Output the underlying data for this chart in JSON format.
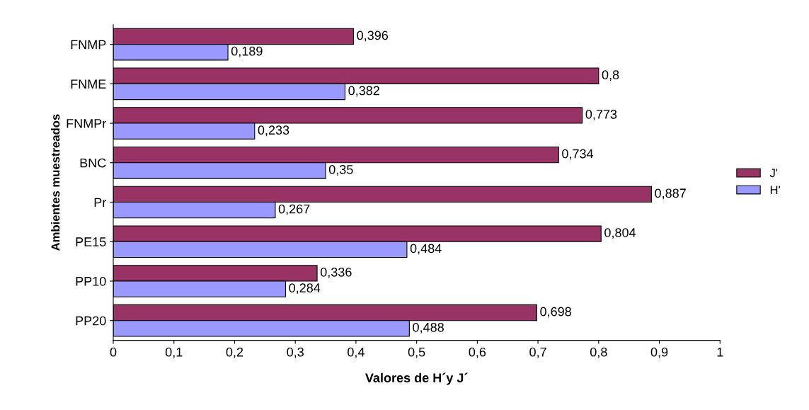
{
  "chart_data": {
    "type": "bar",
    "orientation": "horizontal",
    "xlabel": "Valores de H´y J´",
    "ylabel": "Ambientes muestreados",
    "categories": [
      "FNMP",
      "FNME",
      "FNMPr",
      "BNC",
      "Pr",
      "PE15",
      "PP10",
      "PP20"
    ],
    "series": [
      {
        "name": "J'",
        "color": "#993366",
        "values": [
          0.396,
          0.8,
          0.773,
          0.734,
          0.887,
          0.804,
          0.336,
          0.698
        ],
        "value_labels": [
          "0,396",
          "0,8",
          "0,773",
          "0,734",
          "0,887",
          "0,804",
          "0,336",
          "0,698"
        ]
      },
      {
        "name": "H'",
        "color": "#9999ff",
        "values": [
          0.189,
          0.382,
          0.233,
          0.35,
          0.267,
          0.484,
          0.284,
          0.488
        ],
        "value_labels": [
          "0,189",
          "0,382",
          "0,233",
          "0,35",
          "0,267",
          "0,484",
          "0,284",
          "0,488"
        ]
      }
    ],
    "xlim": [
      0,
      1
    ],
    "xticks": [
      0,
      {
        "value": 0.1,
        "label": "0,1"
      },
      {
        "value": 0.2,
        "label": "0,2"
      },
      {
        "value": 0.3,
        "label": "0,3"
      },
      {
        "value": 0.4,
        "label": "0,4"
      },
      {
        "value": 0.5,
        "label": "0,5"
      },
      {
        "value": 0.6,
        "label": "0,6"
      },
      {
        "value": 0.7,
        "label": "0,7"
      },
      {
        "value": 0.8,
        "label": "0,8"
      },
      {
        "value": 0.9,
        "label": "0,9"
      },
      1
    ],
    "legend": "right",
    "grid": false
  }
}
